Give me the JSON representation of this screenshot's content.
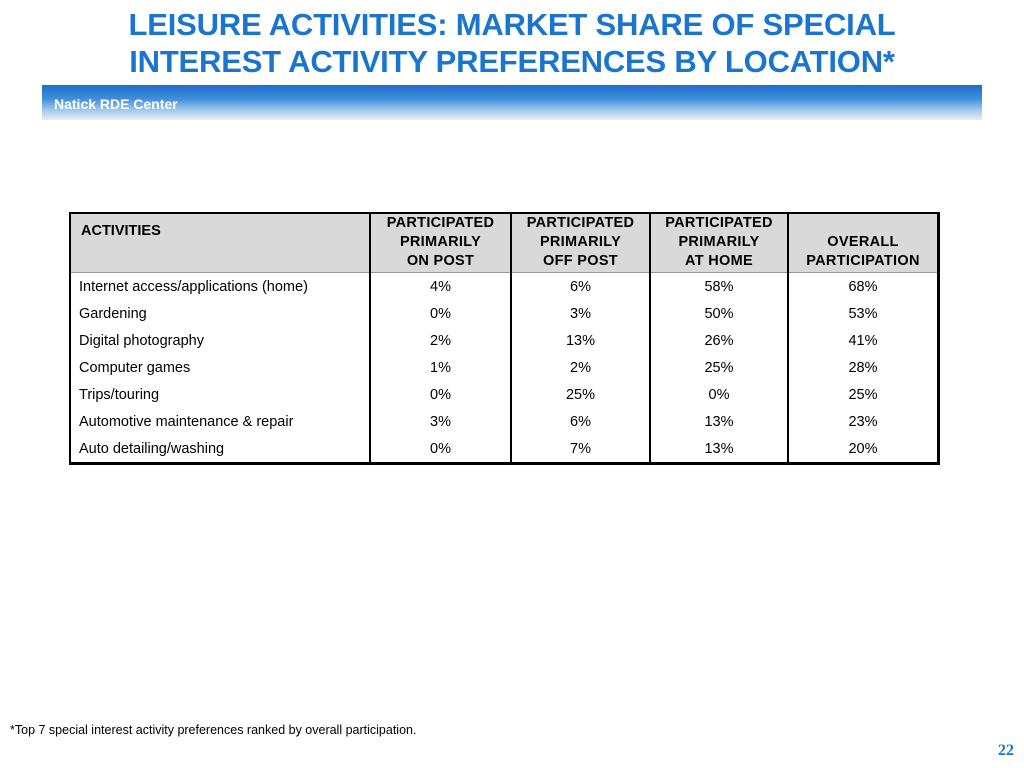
{
  "slide": {
    "title_line1": "LEISURE ACTIVITIES: MARKET SHARE OF SPECIAL",
    "title_line2": "INTEREST ACTIVITY PREFERENCES BY LOCATION*",
    "banner_label": "Natick RDE Center",
    "footnote": "*Top 7 special interest activity preferences ranked by overall participation.",
    "page_number": "22",
    "accent_color": "#1a75cf"
  },
  "table": {
    "headers": [
      {
        "lines": [
          "ACTIVITIES"
        ]
      },
      {
        "lines": [
          "PARTICIPATED",
          "PRIMARILY",
          "ON POST"
        ]
      },
      {
        "lines": [
          "PARTICIPATED",
          "PRIMARILY",
          "OFF POST"
        ]
      },
      {
        "lines": [
          "PARTICIPATED",
          "PRIMARILY",
          "AT HOME"
        ]
      },
      {
        "lines": [
          "OVERALL",
          "PARTICIPATION"
        ]
      }
    ],
    "rows": [
      [
        "Internet access/applications (home)",
        "4%",
        "6%",
        "58%",
        "68%"
      ],
      [
        "Gardening",
        "0%",
        "3%",
        "50%",
        "53%"
      ],
      [
        "Digital photography",
        "2%",
        "13%",
        "26%",
        "41%"
      ],
      [
        "Computer games",
        "1%",
        "2%",
        "25%",
        "28%"
      ],
      [
        "Trips/touring",
        "0%",
        "25%",
        "0%",
        "25%"
      ],
      [
        "Automotive maintenance & repair",
        "3%",
        "6%",
        "13%",
        "23%"
      ],
      [
        "Auto detailing/washing",
        "0%",
        "7%",
        "13%",
        "20%"
      ]
    ]
  }
}
